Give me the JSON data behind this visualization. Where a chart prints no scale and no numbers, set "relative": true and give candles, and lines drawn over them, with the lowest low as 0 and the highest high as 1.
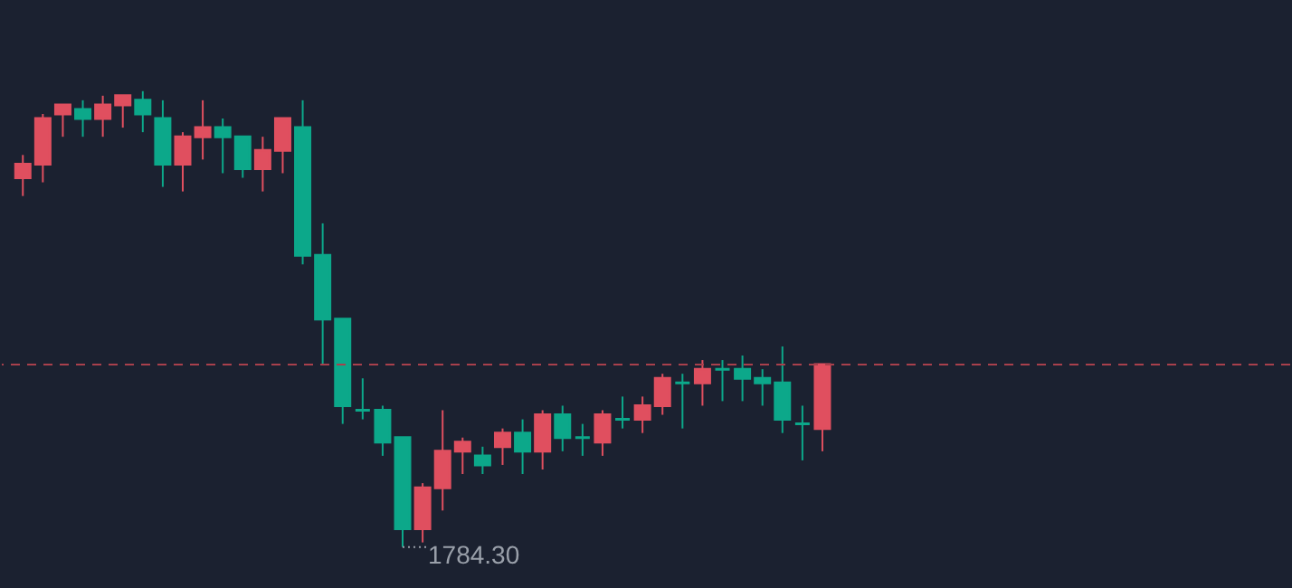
{
  "chart_data": {
    "type": "candlestick",
    "relative": true,
    "tick_labels": false,
    "categories": [
      null,
      null,
      null,
      null,
      null,
      null,
      null,
      null,
      null,
      null,
      null,
      null,
      null,
      null,
      null,
      null,
      null,
      null,
      null,
      null,
      null,
      null,
      null,
      null,
      null,
      null,
      null,
      null,
      null,
      null,
      null,
      null,
      null,
      null,
      null,
      null,
      null,
      null,
      null,
      null,
      null
    ],
    "ohlc": [
      [
        0.81,
        0.86,
        0.77,
        0.84
      ],
      [
        0.84,
        0.95,
        0.8,
        0.94
      ],
      [
        0.95,
        0.97,
        0.9,
        0.97
      ],
      [
        0.96,
        0.98,
        0.9,
        0.94
      ],
      [
        0.94,
        0.99,
        0.9,
        0.97
      ],
      [
        0.97,
        0.99,
        0.92,
        0.99
      ],
      [
        0.98,
        1.0,
        0.91,
        0.95
      ],
      [
        0.94,
        0.98,
        0.79,
        0.84
      ],
      [
        0.84,
        0.91,
        0.78,
        0.9
      ],
      [
        0.9,
        0.98,
        0.85,
        0.92
      ],
      [
        0.92,
        0.94,
        0.82,
        0.9
      ],
      [
        0.9,
        0.9,
        0.81,
        0.83
      ],
      [
        0.83,
        0.9,
        0.78,
        0.87
      ],
      [
        0.87,
        0.94,
        0.82,
        0.94
      ],
      [
        0.92,
        0.98,
        0.62,
        0.64
      ],
      [
        0.64,
        0.71,
        0.4,
        0.5
      ],
      [
        0.5,
        0.5,
        0.27,
        0.31
      ],
      [
        0.3,
        0.37,
        0.28,
        0.3
      ],
      [
        0.3,
        0.31,
        0.2,
        0.23
      ],
      [
        0.24,
        0.24,
        0.0,
        0.04
      ],
      [
        0.04,
        0.14,
        0.01,
        0.13
      ],
      [
        0.13,
        0.3,
        0.08,
        0.21
      ],
      [
        0.21,
        0.24,
        0.16,
        0.23
      ],
      [
        0.2,
        0.22,
        0.16,
        0.18
      ],
      [
        0.22,
        0.26,
        0.18,
        0.25
      ],
      [
        0.25,
        0.28,
        0.16,
        0.21
      ],
      [
        0.21,
        0.3,
        0.17,
        0.29
      ],
      [
        0.29,
        0.31,
        0.21,
        0.24
      ],
      [
        0.24,
        0.27,
        0.2,
        0.24
      ],
      [
        0.23,
        0.3,
        0.2,
        0.29
      ],
      [
        0.28,
        0.33,
        0.26,
        0.28
      ],
      [
        0.28,
        0.33,
        0.25,
        0.31
      ],
      [
        0.31,
        0.38,
        0.29,
        0.37
      ],
      [
        0.36,
        0.38,
        0.26,
        0.36
      ],
      [
        0.36,
        0.41,
        0.31,
        0.39
      ],
      [
        0.39,
        0.41,
        0.32,
        0.39
      ],
      [
        0.39,
        0.42,
        0.32,
        0.37
      ],
      [
        0.37,
        0.39,
        0.31,
        0.36
      ],
      [
        0.36,
        0.44,
        0.25,
        0.28
      ],
      [
        0.27,
        0.31,
        0.19,
        0.27
      ],
      [
        0.26,
        0.4,
        0.21,
        0.4
      ]
    ],
    "colors": [
      "#e04f5f",
      "#e04f5f",
      "#e04f5f",
      "#0ca88a",
      "#e04f5f",
      "#e04f5f",
      "#0ca88a",
      "#0ca88a",
      "#e04f5f",
      "#e04f5f",
      "#0ca88a",
      "#0ca88a",
      "#e04f5f",
      "#e04f5f",
      "#0ca88a",
      "#0ca88a",
      "#0ca88a",
      "#0ca88a",
      "#0ca88a",
      "#0ca88a",
      "#e04f5f",
      "#e04f5f",
      "#e04f5f",
      "#0ca88a",
      "#e04f5f",
      "#0ca88a",
      "#e04f5f",
      "#0ca88a",
      "#0ca88a",
      "#e04f5f",
      "#0ca88a",
      "#e04f5f",
      "#e04f5f",
      "#0ca88a",
      "#e04f5f",
      "#0ca88a",
      "#0ca88a",
      "#0ca88a",
      "#0ca88a",
      "#0ca88a",
      "#e04f5f"
    ],
    "ref_lines": [
      {
        "axis": "y",
        "value": 0.4,
        "color": "#a8404c",
        "line_style": "dashed"
      }
    ],
    "annotations": [
      "1784.30"
    ]
  }
}
